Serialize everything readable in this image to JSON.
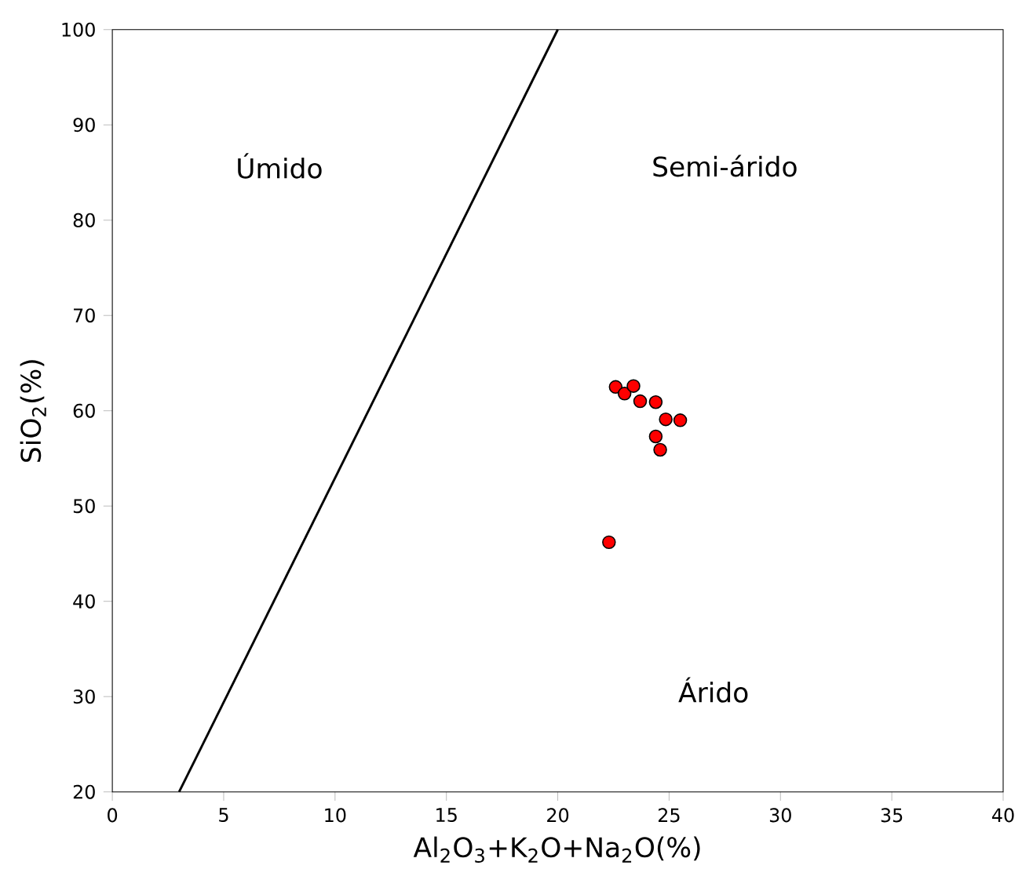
{
  "chart_data": {
    "type": "scatter",
    "xlabel": "Al$_{2}$O$_{3}$+K$_{2}$O+Na$_{2}$O(%)",
    "ylabel": "SiO$_{2}$(%)",
    "xlim": [
      0,
      40
    ],
    "ylim": [
      20,
      100
    ],
    "xticks": [
      0,
      5,
      10,
      15,
      20,
      25,
      30,
      35,
      40
    ],
    "yticks": [
      20,
      30,
      40,
      50,
      60,
      70,
      80,
      90,
      100
    ],
    "grid": false,
    "legend": false,
    "series": [
      {
        "type": "line",
        "color": "#000000",
        "marker": "none",
        "line_style": "solid",
        "x": [
          3,
          20
        ],
        "values": [
          20,
          100
        ]
      },
      {
        "color": "#ff0000",
        "marker": "circle",
        "x": [
          22.6,
          23.0,
          23.4,
          23.7,
          24.4,
          24.85,
          25.5,
          24.4,
          24.6,
          22.3
        ],
        "values": [
          62.5,
          61.8,
          62.6,
          61.0,
          60.9,
          59.1,
          59.0,
          57.3,
          55.9,
          46.2
        ]
      }
    ],
    "annotations": [
      "Úmido",
      "Semi-árido",
      "Árido"
    ]
  }
}
